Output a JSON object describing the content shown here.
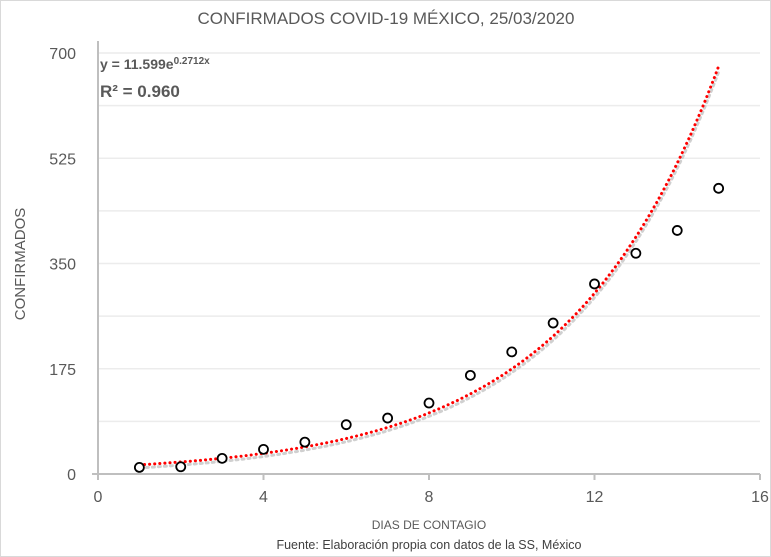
{
  "chart_data": {
    "type": "scatter",
    "title": "CONFIRMADOS COVID-19 MÉXICO, 25/03/2020",
    "xlabel": "DIAS DE CONTAGIO",
    "ylabel": "CONFIRMADOS",
    "source": "Fuente: Elaboración propia con datos de la SS, México",
    "xlim": [
      0,
      16
    ],
    "ylim": [
      0,
      700
    ],
    "xticks": [
      0,
      4,
      8,
      12,
      16
    ],
    "yticks": [
      0,
      175,
      350,
      525,
      700
    ],
    "grid": true,
    "x": [
      1,
      2,
      3,
      4,
      5,
      6,
      7,
      8,
      9,
      10,
      11,
      12,
      13,
      14,
      15
    ],
    "y": [
      11,
      12,
      26,
      41,
      53,
      82,
      93,
      118,
      164,
      203,
      251,
      316,
      367,
      405,
      475
    ],
    "trendline": {
      "type": "exponential",
      "a": 11.599,
      "b": 0.2712,
      "color": "#ff0000",
      "equation_prefix": "y = 11.599e",
      "equation_exp": "0.2712x",
      "r2_label": "R² = 0.960"
    }
  }
}
